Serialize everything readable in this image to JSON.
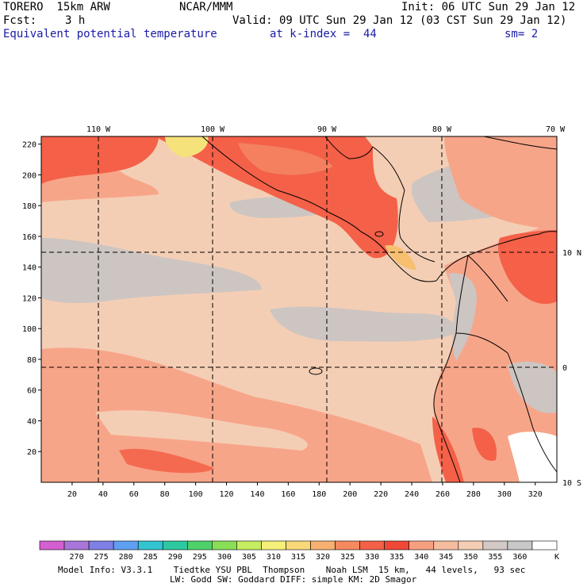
{
  "header": {
    "model": "TORERO  15km ARW",
    "center": "NCAR/MMM",
    "init": "Init: 06 UTC Sun 29 Jan 12",
    "fcst_label": "Fcst:",
    "fcst_value": "3 h",
    "valid": "Valid: 09 UTC Sun 29 Jan 12 (03 CST Sun 29 Jan 12)",
    "field": "Equivalent potential temperature",
    "level": "at k-index =  44",
    "smoothing": "sm= 2"
  },
  "map": {
    "top_lon_labels": [
      "110 W",
      "100 W",
      "90 W",
      "80 W",
      "70 W"
    ],
    "right_lat_labels": [
      "10 N",
      "0",
      "10 S"
    ],
    "left_y_ticks": [
      "220",
      "200",
      "180",
      "160",
      "140",
      "120",
      "100",
      "80",
      "60",
      "40",
      "20"
    ],
    "bottom_x_ticks": [
      "20",
      "40",
      "60",
      "80",
      "100",
      "120",
      "140",
      "160",
      "180",
      "200",
      "220",
      "240",
      "260",
      "280",
      "300",
      "320"
    ]
  },
  "colorbar": {
    "labels": [
      "270",
      "275",
      "280",
      "285",
      "290",
      "295",
      "300",
      "305",
      "310",
      "315",
      "320",
      "325",
      "330",
      "335",
      "340",
      "345",
      "350",
      "355",
      "360"
    ],
    "unit": "K",
    "colors": [
      "#d45fd0",
      "#a875d8",
      "#7f7fe6",
      "#5f9ff2",
      "#33c4d2",
      "#2ec8a0",
      "#4dd26b",
      "#88de55",
      "#c6ec5f",
      "#f4f07a",
      "#f8d878",
      "#f6b070",
      "#f58a5e",
      "#f46048",
      "#f04838",
      "#f7a080",
      "#f6bca0",
      "#f4ceb4",
      "#d2c8c6",
      "#c8c8c8",
      "#ffffff"
    ]
  },
  "footer": {
    "line1": "Model Info: V3.3.1    Tiedtke YSU PBL  Thompson    Noah LSM  15 km,   44 levels,   93 sec",
    "line2": "LW: Godd SW: Goddard DIFF: simple KM: 2D Smagor"
  }
}
